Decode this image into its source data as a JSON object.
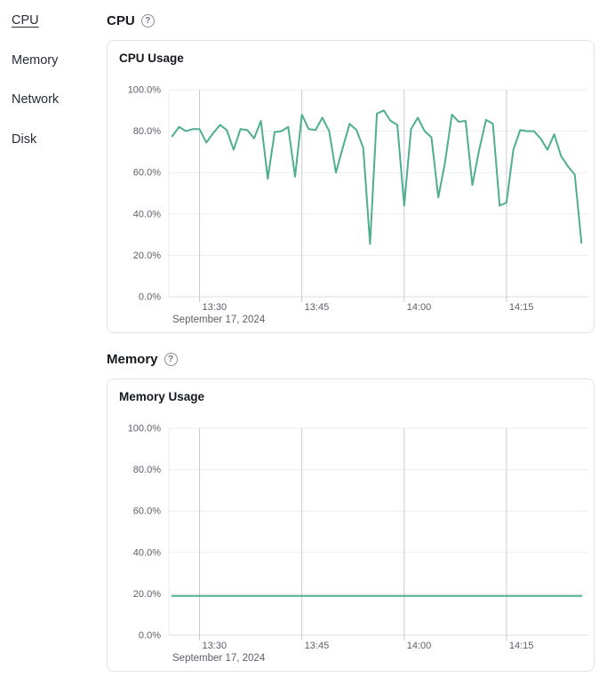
{
  "sidebar": {
    "items": [
      {
        "label": "CPU",
        "active": true
      },
      {
        "label": "Memory",
        "active": false
      },
      {
        "label": "Network",
        "active": false
      },
      {
        "label": "Disk",
        "active": false
      }
    ]
  },
  "sections": [
    {
      "heading": "CPU",
      "help_glyph": "?"
    },
    {
      "heading": "Memory",
      "help_glyph": "?"
    }
  ],
  "colors": {
    "accent_line": "#4fae90",
    "grid_vertical": "#c9cbd1",
    "grid_horizontal": "#ededf1",
    "axis_line": "#dcdde2",
    "axis_text": "#5b6069"
  },
  "chart_data": [
    {
      "type": "line",
      "title": "CPU Usage",
      "xlabel": "",
      "ylabel": "",
      "ylim": [
        0,
        100
      ],
      "y_ticks": [
        "0.0%",
        "20.0%",
        "40.0%",
        "60.0%",
        "80.0%",
        "100.0%"
      ],
      "x_ticks": [
        "13:30",
        "13:45",
        "14:00",
        "14:15"
      ],
      "x_axis_date": "September 17, 2024",
      "x_domain_minutes": [
        805.5,
        867
      ],
      "grid": true,
      "legend_position": "none",
      "series": [
        {
          "name": "CPU usage %",
          "color": "#4fae90",
          "x_start": "13:26",
          "x_step_minutes": 1,
          "values": [
            77.5,
            82,
            80,
            81,
            81,
            74.5,
            79,
            83,
            80.5,
            71,
            81,
            80.5,
            76.5,
            85,
            57,
            79.5,
            80,
            82,
            58,
            88,
            81,
            80.5,
            86.5,
            80,
            60,
            72,
            83.5,
            80.5,
            72,
            25.5,
            88.5,
            90,
            85,
            83,
            44,
            81,
            86.5,
            80,
            77,
            48,
            65,
            88,
            84.5,
            85,
            54,
            71,
            85.5,
            83.5,
            44,
            45.5,
            71,
            80.5,
            80,
            80,
            76.5,
            71,
            78.5,
            68,
            63,
            59,
            26
          ]
        }
      ]
    },
    {
      "type": "line",
      "title": "Memory Usage",
      "xlabel": "",
      "ylabel": "",
      "ylim": [
        0,
        100
      ],
      "y_ticks": [
        "0.0%",
        "20.0%",
        "40.0%",
        "60.0%",
        "80.0%",
        "100.0%"
      ],
      "x_ticks": [
        "13:30",
        "13:45",
        "14:00",
        "14:15"
      ],
      "x_axis_date": "September 17, 2024",
      "x_domain_minutes": [
        805.5,
        867
      ],
      "grid": true,
      "legend_position": "none",
      "series": [
        {
          "name": "Memory usage %",
          "color": "#4fae90",
          "x_start": "13:26",
          "x_end": "14:26",
          "constant_value": 19
        }
      ]
    }
  ]
}
